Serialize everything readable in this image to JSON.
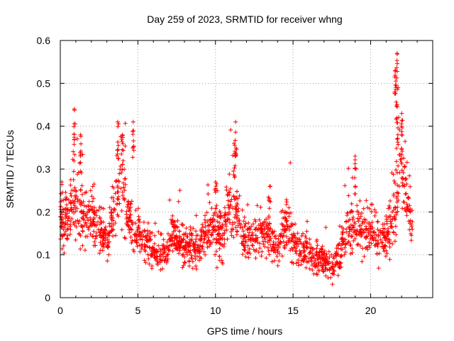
{
  "chart_data": {
    "type": "scatter",
    "title": "Day 259 of 2023, SRMTID for receiver whng",
    "xlabel": "GPS time / hours",
    "ylabel": "SRMTID / TECUs",
    "xlim": [
      0,
      24
    ],
    "ylim": [
      0,
      0.6
    ],
    "xticks": [
      0,
      5,
      10,
      15,
      20
    ],
    "xtick_labels": [
      "0",
      "5",
      "10",
      "15",
      "20"
    ],
    "yticks": [
      0,
      0.1,
      0.2,
      0.3,
      0.4,
      0.5,
      0.6
    ],
    "ytick_labels": [
      "0",
      "0.1",
      "0.2",
      "0.3",
      "0.4",
      "0.5",
      "0.6"
    ],
    "grid": true,
    "marker": "+",
    "series_color": "#ff0000",
    "trend": [
      [
        0.0,
        0.17,
        0.05
      ],
      [
        0.5,
        0.19,
        0.05
      ],
      [
        0.9,
        0.24,
        0.08
      ],
      [
        1.3,
        0.2,
        0.06
      ],
      [
        2.0,
        0.19,
        0.05
      ],
      [
        2.7,
        0.15,
        0.05
      ],
      [
        3.0,
        0.12,
        0.03
      ],
      [
        3.5,
        0.22,
        0.06
      ],
      [
        3.9,
        0.26,
        0.08
      ],
      [
        4.3,
        0.21,
        0.06
      ],
      [
        4.8,
        0.16,
        0.05
      ],
      [
        5.2,
        0.14,
        0.04
      ],
      [
        6.0,
        0.11,
        0.03
      ],
      [
        6.8,
        0.1,
        0.03
      ],
      [
        7.2,
        0.15,
        0.04
      ],
      [
        8.0,
        0.12,
        0.04
      ],
      [
        9.0,
        0.12,
        0.04
      ],
      [
        9.6,
        0.17,
        0.05
      ],
      [
        10.3,
        0.14,
        0.05
      ],
      [
        11.2,
        0.22,
        0.07
      ],
      [
        11.8,
        0.14,
        0.04
      ],
      [
        12.5,
        0.14,
        0.04
      ],
      [
        13.2,
        0.15,
        0.04
      ],
      [
        14.0,
        0.12,
        0.04
      ],
      [
        14.6,
        0.18,
        0.05
      ],
      [
        15.0,
        0.13,
        0.04
      ],
      [
        16.0,
        0.1,
        0.03
      ],
      [
        17.0,
        0.09,
        0.03
      ],
      [
        17.6,
        0.07,
        0.03
      ],
      [
        18.2,
        0.13,
        0.04
      ],
      [
        18.7,
        0.17,
        0.05
      ],
      [
        19.2,
        0.15,
        0.05
      ],
      [
        20.0,
        0.16,
        0.05
      ],
      [
        20.6,
        0.14,
        0.04
      ],
      [
        21.0,
        0.13,
        0.04
      ],
      [
        21.6,
        0.22,
        0.1
      ],
      [
        21.9,
        0.32,
        0.08
      ],
      [
        22.3,
        0.24,
        0.06
      ],
      [
        22.7,
        0.17,
        0.05
      ]
    ],
    "count": 1900,
    "peaks": [
      {
        "x": 0.9,
        "y": 0.44
      },
      {
        "x": 1.3,
        "y": 0.38
      },
      {
        "x": 3.7,
        "y": 0.41
      },
      {
        "x": 4.7,
        "y": 0.41
      },
      {
        "x": 11.3,
        "y": 0.41
      },
      {
        "x": 11.2,
        "y": 0.36
      },
      {
        "x": 19.0,
        "y": 0.33
      },
      {
        "x": 21.6,
        "y": 0.53
      },
      {
        "x": 21.7,
        "y": 0.57
      },
      {
        "x": 21.7,
        "y": 0.45
      },
      {
        "x": 22.0,
        "y": 0.43
      },
      {
        "x": 0.1,
        "y": 0.27
      },
      {
        "x": 4.0,
        "y": 0.38
      },
      {
        "x": 10.0,
        "y": 0.27
      },
      {
        "x": 13.5,
        "y": 0.26
      }
    ]
  }
}
